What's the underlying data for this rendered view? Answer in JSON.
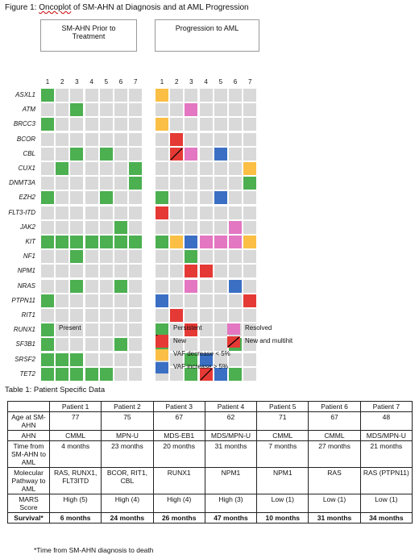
{
  "figure": {
    "title_prefix": "Figure 1: ",
    "title_misspelled": "Oncoplot",
    "title_rest": " of SM-AHN at Diagnosis and at AML Progression",
    "left_header": "SM-AHN Prior to Treatment",
    "right_header": "Progression to AML",
    "col_numbers": [
      "1",
      "2",
      "3",
      "4",
      "5",
      "6",
      "7"
    ],
    "genes": [
      "ASXL1",
      "ATM",
      "BRCC3",
      "BCOR",
      "CBL",
      "CUX1",
      "DNMT3A",
      "EZH2",
      "FLT3-ITD",
      "JAK2",
      "KIT",
      "NF1",
      "NPM1",
      "NRAS",
      "PTPN11",
      "RIT1",
      "RUNX1",
      "SF3B1",
      "SRSF2",
      "TET2"
    ],
    "colors": {
      "empty": "#d9d9d9",
      "present": "#4caf50",
      "persistent": "#4caf50",
      "resolved": "#e377c2",
      "new": "#e53935",
      "vaf_decrease": "#fbbf45",
      "vaf_increase": "#3a6fc4",
      "new_multihit": "#e53935"
    },
    "left_matrix": [
      "P......",
      "..P....",
      "P......",
      ".......",
      "..P.P..",
      ".P....P",
      "......P",
      "P...P..",
      ".......",
      ".....P.",
      "PPPPPPP",
      "..P....",
      ".......",
      "..P..P.",
      "P......",
      ".......",
      "P......",
      "P....P.",
      "PPP....",
      "PPPPP.."
    ],
    "right_matrix": [
      "D......",
      "..R....",
      "D......",
      ".N.....",
      ".MR.I..",
      "......D",
      "......P",
      "P...I..",
      "N......",
      ".....R.",
      "PDIRRRD",
      "..P....",
      "..NN...",
      "..R..I.",
      "I.....N",
      ".N.....",
      "M.N....",
      "P....P.",
      "..PI...",
      "..PMIP."
    ],
    "legend": {
      "present": "Present",
      "persistent": "Persistent",
      "resolved": "Resolved",
      "new": "New",
      "new_multihit": "New and multihit",
      "vaf_decrease": "VAF decrease < 5%",
      "vaf_increase": "VAF increase > 5%"
    }
  },
  "table": {
    "title": "Table 1: Patient Specific Data",
    "header": [
      "",
      "Patient 1",
      "Patient 2",
      "Patient 3",
      "Patient 4",
      "Patient 5",
      "Patient 6",
      "Patient 7"
    ],
    "rows": [
      {
        "label": "Age at SM-AHN",
        "values": [
          "77",
          "75",
          "67",
          "62",
          "71",
          "67",
          "48"
        ]
      },
      {
        "label": "AHN",
        "values": [
          "CMML",
          "MPN-U",
          "MDS-EB1",
          "MDS/MPN-U",
          "CMML",
          "CMML",
          "MDS/MPN-U"
        ]
      },
      {
        "label": "Time from SM-AHN to AML",
        "values": [
          "4 months",
          "23 months",
          "20 months",
          "31 months",
          "7 months",
          "27 months",
          "21 months"
        ]
      },
      {
        "label": "Molecular Pathway to AML",
        "values": [
          "RAS, RUNX1, FLT3ITD",
          "BCOR, RIT1, CBL",
          "RUNX1",
          "NPM1",
          "NPM1",
          "RAS",
          "RAS (PTPN11)"
        ]
      },
      {
        "label": "MARS Score",
        "values": [
          "High (5)",
          "High (4)",
          "High (4)",
          "High (3)",
          "Low (1)",
          "Low (1)",
          "Low (1)"
        ]
      },
      {
        "label": "Survival*",
        "values": [
          "6 months",
          "24 months",
          "26 months",
          "47 months",
          "10 months",
          "31 months",
          "34 months"
        ]
      }
    ],
    "footnote": "*Time from SM-AHN diagnosis to death"
  }
}
